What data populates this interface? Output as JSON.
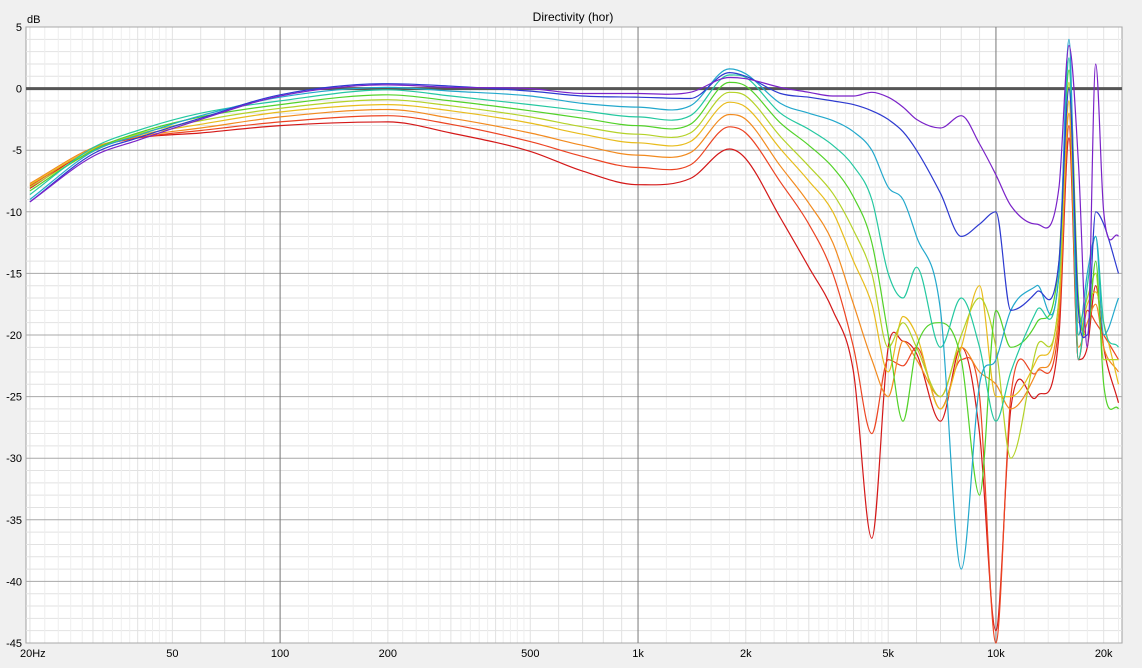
{
  "chart_data": {
    "type": "line",
    "title": "Directivity (hor)",
    "ylabel": "dB",
    "xlabel": "",
    "xscale": "log",
    "xlim": [
      19.5,
      22500
    ],
    "ylim": [
      -45,
      5
    ],
    "grid": true,
    "legend": "none",
    "y_ticks": [
      5,
      0,
      -5,
      -10,
      -15,
      -20,
      -25,
      -30,
      -35,
      -40,
      -45
    ],
    "y_tick_labels": [
      "5",
      "0",
      "-5",
      "-10",
      "-15",
      "-20",
      "-25",
      "-30",
      "-35",
      "-40",
      "-45"
    ],
    "x_ticks": [
      20,
      50,
      100,
      200,
      500,
      1000,
      2000,
      5000,
      10000,
      20000
    ],
    "x_tick_labels": [
      "20Hz",
      "50",
      "100",
      "200",
      "500",
      "1k",
      "2k",
      "5k",
      "10k",
      "20k"
    ],
    "reference_line": 0,
    "x": [
      20,
      30,
      40,
      60,
      100,
      200,
      300,
      500,
      700,
      1000,
      1400,
      1800,
      2000,
      2500,
      3000,
      3500,
      4000,
      4500,
      5000,
      5500,
      6000,
      7000,
      8000,
      9000,
      10000,
      11000,
      13000,
      15000,
      16000,
      17000,
      18000,
      19000,
      20000,
      22000
    ],
    "series": [
      {
        "color": "#7a22c8",
        "values": [
          -9.2,
          -5.5,
          -4.2,
          -2.5,
          -0.6,
          0.3,
          0.1,
          0.0,
          -0.4,
          -0.4,
          -0.3,
          0.9,
          0.8,
          0.1,
          -0.3,
          -0.6,
          -0.6,
          -0.3,
          -0.7,
          -1.5,
          -2.5,
          -3.2,
          -2.2,
          -4.5,
          -7.0,
          -9.5,
          -11.0,
          -8.0,
          3.5,
          -6.0,
          -21.0,
          2.0,
          -10.0,
          -12.0
        ]
      },
      {
        "color": "#2d3ad0",
        "values": [
          -9.2,
          -5.3,
          -4.0,
          -2.4,
          -0.5,
          0.4,
          0.2,
          -0.2,
          -0.6,
          -0.7,
          -0.8,
          1.3,
          1.0,
          -0.4,
          -0.7,
          -1.0,
          -1.3,
          -1.8,
          -2.5,
          -3.5,
          -5.0,
          -8.5,
          -12.0,
          -11.0,
          -10.0,
          -18.0,
          -16.5,
          -14.0,
          0.0,
          -18.0,
          -20.0,
          -10.0,
          -11.0,
          -15.0
        ]
      },
      {
        "color": "#22a8cc",
        "values": [
          -9.0,
          -5.1,
          -3.8,
          -2.2,
          -0.7,
          0.1,
          -0.2,
          -0.6,
          -1.2,
          -1.5,
          -1.4,
          1.6,
          1.2,
          -1.2,
          -2.0,
          -2.6,
          -3.5,
          -5.0,
          -8.0,
          -9.0,
          -12.0,
          -18.0,
          -39.0,
          -24.0,
          -22.0,
          -18.0,
          -16.0,
          -15.0,
          4.0,
          -20.0,
          -15.0,
          -12.0,
          -20.0,
          -17.0
        ]
      },
      {
        "color": "#24c8a0",
        "values": [
          -8.6,
          -4.8,
          -3.4,
          -2.0,
          -1.0,
          -0.1,
          -0.6,
          -1.3,
          -1.8,
          -2.3,
          -2.2,
          1.1,
          0.9,
          -2.0,
          -3.3,
          -4.6,
          -6.3,
          -9.0,
          -15.0,
          -17.0,
          -14.5,
          -21.0,
          -17.0,
          -21.0,
          -27.0,
          -23.0,
          -18.0,
          -15.0,
          2.5,
          -22.0,
          -16.0,
          -12.0,
          -19.0,
          -21.0
        ]
      },
      {
        "color": "#52d228",
        "values": [
          -8.3,
          -5.0,
          -3.6,
          -2.3,
          -1.3,
          -0.5,
          -1.0,
          -1.8,
          -2.4,
          -3.0,
          -2.9,
          0.5,
          0.2,
          -2.8,
          -4.6,
          -6.4,
          -8.8,
          -12.5,
          -20.0,
          -27.0,
          -21.0,
          -19.0,
          -22.0,
          -33.0,
          -18.0,
          -21.0,
          -19.0,
          -14.0,
          1.5,
          -17.0,
          -20.0,
          -14.0,
          -24.0,
          -26.0
        ]
      },
      {
        "color": "#b4d228",
        "values": [
          -8.0,
          -5.1,
          -3.7,
          -2.6,
          -1.6,
          -0.9,
          -1.4,
          -2.3,
          -3.1,
          -3.7,
          -3.6,
          -0.3,
          -0.6,
          -3.9,
          -6.3,
          -8.5,
          -11.5,
          -15.0,
          -21.0,
          -19.0,
          -21.0,
          -25.0,
          -20.0,
          -17.0,
          -21.0,
          -30.0,
          -21.0,
          -17.0,
          0.5,
          -19.0,
          -17.0,
          -15.0,
          -22.0,
          -22.0
        ]
      },
      {
        "color": "#e8bc1c",
        "values": [
          -7.8,
          -4.9,
          -3.8,
          -2.9,
          -1.9,
          -1.3,
          -1.8,
          -2.8,
          -3.7,
          -4.4,
          -4.3,
          -1.1,
          -1.5,
          -4.9,
          -7.5,
          -10.0,
          -14.0,
          -17.5,
          -23.0,
          -18.5,
          -20.0,
          -26.0,
          -21.0,
          -16.0,
          -25.0,
          -25.0,
          -22.0,
          -17.0,
          -1.0,
          -20.0,
          -17.5,
          -16.5,
          -19.0,
          -24.0
        ]
      },
      {
        "color": "#f28a1e",
        "values": [
          -7.7,
          -4.8,
          -3.9,
          -3.2,
          -2.3,
          -1.7,
          -2.4,
          -3.6,
          -4.6,
          -5.4,
          -5.2,
          -2.1,
          -2.5,
          -6.3,
          -9.3,
          -12.5,
          -17.5,
          -22.0,
          -25.0,
          -20.5,
          -22.0,
          -25.0,
          -21.0,
          -23.0,
          -24.0,
          -26.0,
          -23.0,
          -18.0,
          -2.0,
          -21.0,
          -19.0,
          -17.5,
          -21.0,
          -23.0
        ]
      },
      {
        "color": "#ec4422",
        "values": [
          -7.9,
          -4.9,
          -4.0,
          -3.4,
          -2.7,
          -2.2,
          -2.9,
          -4.3,
          -5.5,
          -6.4,
          -6.2,
          -3.1,
          -3.6,
          -7.6,
          -11.0,
          -15.0,
          -21.0,
          -28.0,
          -22.0,
          -22.5,
          -21.0,
          -26.0,
          -22.0,
          -25.0,
          -45.0,
          -25.0,
          -23.0,
          -19.0,
          -3.0,
          -22.0,
          -18.0,
          -19.0,
          -20.0,
          -22.0
        ]
      },
      {
        "color": "#d41818",
        "values": [
          -8.1,
          -4.9,
          -4.0,
          -3.6,
          -3.0,
          -2.7,
          -3.6,
          -5.1,
          -6.7,
          -7.8,
          -7.3,
          -4.9,
          -5.7,
          -10.5,
          -14.5,
          -18.0,
          -23.0,
          -36.5,
          -21.0,
          -20.5,
          -21.5,
          -27.0,
          -21.0,
          -28.0,
          -44.0,
          -26.0,
          -25.0,
          -20.0,
          -4.0,
          -22.0,
          -21.0,
          -16.0,
          -21.0,
          -25.5
        ]
      }
    ]
  }
}
